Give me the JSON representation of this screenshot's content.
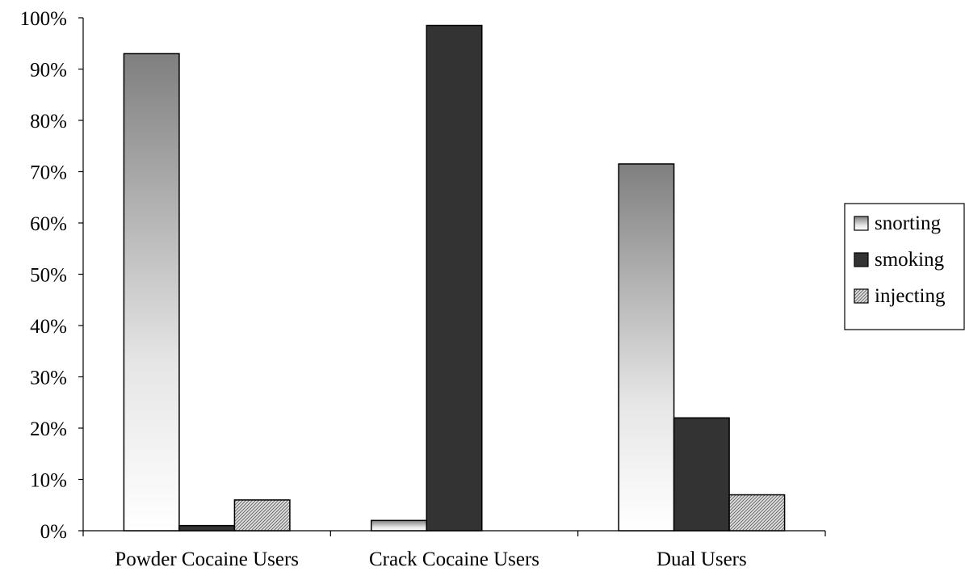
{
  "chart_data": {
    "type": "bar",
    "title": "",
    "xlabel": "",
    "ylabel": "",
    "categories": [
      "Powder Cocaine Users",
      "Crack Cocaine Users",
      "Dual Users"
    ],
    "series": [
      {
        "name": "snorting",
        "values": [
          93,
          2,
          71.5
        ],
        "fill": "gradient",
        "color": "#7f7f7f"
      },
      {
        "name": "smoking",
        "values": [
          1,
          98.5,
          22
        ],
        "fill": "solid",
        "color": "#333333"
      },
      {
        "name": "injecting",
        "values": [
          6,
          0,
          7
        ],
        "fill": "hatch",
        "color": "#c8c8c8"
      }
    ],
    "ylim": [
      0,
      100
    ],
    "yticks": [
      "0%",
      "10%",
      "20%",
      "30%",
      "40%",
      "50%",
      "60%",
      "70%",
      "80%",
      "90%",
      "100%"
    ],
    "grid": false,
    "legend": "right"
  }
}
